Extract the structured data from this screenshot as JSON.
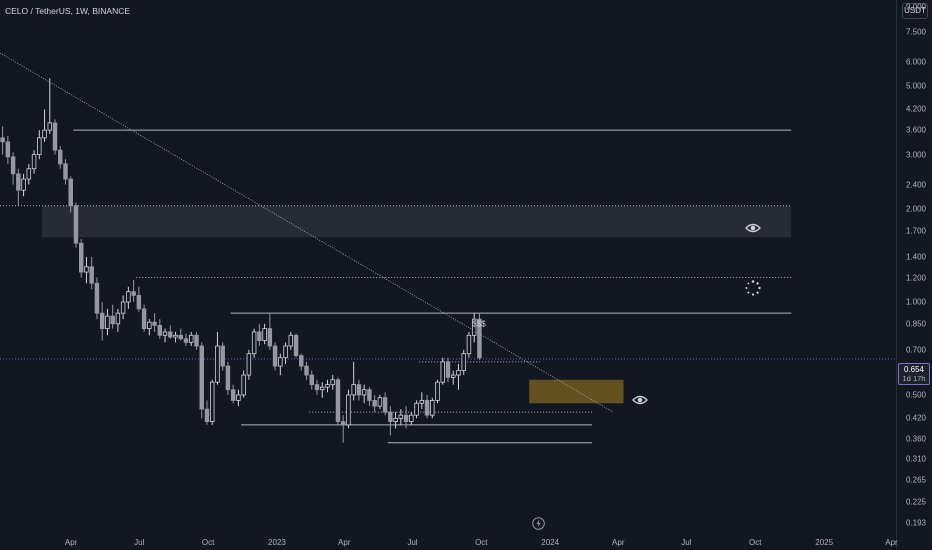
{
  "header": {
    "title": "CELO / TetherUS, 1W, BINANCE",
    "unit_button": "USDT"
  },
  "last_price": {
    "value": "0.654",
    "countdown": "1d 17h"
  },
  "annotations": {
    "sss_label": "$$$"
  },
  "icons": {
    "eye_upper": "eye-icon",
    "loading": "loading-spinner-icon",
    "eye_lower": "eye-icon",
    "bolt": "lightning-icon"
  },
  "colors": {
    "background": "#131722",
    "bull": "#d1d4dc",
    "bear": "#9598a1",
    "trendline": "#b2b5be",
    "orange_box": "#a6811f",
    "gray_zone": "#2a2e39",
    "last_price_line": "#7b6fd6"
  },
  "chart_data": {
    "type": "candlestick",
    "title": "CELO / TetherUS, 1W, BINANCE",
    "y_scale": "log",
    "ylim": [
      0.18,
      9.5
    ],
    "y_ticks": [
      "9.000",
      "7.500",
      "6.000",
      "5.000",
      "4.200",
      "3.600",
      "3.000",
      "2.400",
      "2.000",
      "1.700",
      "1.400",
      "1.200",
      "1.000",
      "0.850",
      "0.700",
      "0.500",
      "0.420",
      "0.360",
      "0.310",
      "0.265",
      "0.225",
      "0.193"
    ],
    "x_ticks": [
      "Apr",
      "Jul",
      "Oct",
      "2023",
      "Apr",
      "Jul",
      "Oct",
      "2024",
      "Apr",
      "Jul",
      "Oct",
      "2025",
      "Apr"
    ],
    "x_tick_dates": [
      "2022-04-01",
      "2022-07-01",
      "2022-10-01",
      "2023-01-01",
      "2023-04-01",
      "2023-07-01",
      "2023-10-01",
      "2024-01-01",
      "2024-04-01",
      "2024-07-01",
      "2024-10-01",
      "2025-01-01",
      "2025-04-01"
    ],
    "xlim": [
      "2021-12-27",
      "2025-04-07"
    ],
    "ohlc_weekly_from": "2021-12-27",
    "ohlc": [
      [
        3.4,
        3.7,
        3.0,
        3.3
      ],
      [
        3.3,
        3.45,
        2.8,
        2.95
      ],
      [
        2.95,
        3.05,
        2.4,
        2.6
      ],
      [
        2.6,
        2.7,
        2.05,
        2.3
      ],
      [
        2.3,
        2.6,
        2.2,
        2.5
      ],
      [
        2.5,
        2.8,
        2.4,
        2.7
      ],
      [
        2.7,
        3.1,
        2.6,
        3.0
      ],
      [
        3.0,
        3.6,
        2.9,
        3.4
      ],
      [
        3.4,
        4.2,
        3.3,
        3.6
      ],
      [
        3.6,
        5.3,
        3.5,
        3.8
      ],
      [
        3.8,
        3.9,
        3.0,
        3.1
      ],
      [
        3.1,
        3.2,
        2.7,
        2.8
      ],
      [
        2.8,
        2.9,
        2.4,
        2.5
      ],
      [
        2.5,
        2.55,
        1.95,
        2.05
      ],
      [
        2.05,
        2.1,
        1.5,
        1.55
      ],
      [
        1.55,
        1.6,
        1.2,
        1.25
      ],
      [
        1.25,
        1.4,
        1.15,
        1.3
      ],
      [
        1.3,
        1.4,
        1.1,
        1.15
      ],
      [
        1.15,
        1.2,
        0.88,
        0.92
      ],
      [
        0.92,
        1.0,
        0.75,
        0.82
      ],
      [
        0.82,
        0.95,
        0.78,
        0.9
      ],
      [
        0.9,
        0.98,
        0.82,
        0.85
      ],
      [
        0.85,
        0.95,
        0.8,
        0.92
      ],
      [
        0.92,
        1.05,
        0.88,
        1.0
      ],
      [
        1.0,
        1.12,
        0.95,
        1.08
      ],
      [
        1.08,
        1.18,
        1.0,
        1.05
      ],
      [
        1.05,
        1.12,
        0.93,
        0.95
      ],
      [
        0.95,
        0.98,
        0.8,
        0.82
      ],
      [
        0.82,
        0.88,
        0.78,
        0.86
      ],
      [
        0.86,
        0.92,
        0.8,
        0.84
      ],
      [
        0.84,
        0.88,
        0.76,
        0.78
      ],
      [
        0.78,
        0.82,
        0.74,
        0.8
      ],
      [
        0.8,
        0.84,
        0.76,
        0.77
      ],
      [
        0.77,
        0.8,
        0.74,
        0.78
      ],
      [
        0.78,
        0.82,
        0.75,
        0.76
      ],
      [
        0.76,
        0.79,
        0.72,
        0.74
      ],
      [
        0.74,
        0.8,
        0.72,
        0.78
      ],
      [
        0.78,
        0.8,
        0.7,
        0.72
      ],
      [
        0.72,
        0.74,
        0.42,
        0.45
      ],
      [
        0.45,
        0.48,
        0.4,
        0.41
      ],
      [
        0.41,
        0.56,
        0.4,
        0.55
      ],
      [
        0.55,
        0.8,
        0.54,
        0.72
      ],
      [
        0.72,
        0.74,
        0.6,
        0.62
      ],
      [
        0.62,
        0.64,
        0.5,
        0.52
      ],
      [
        0.52,
        0.54,
        0.47,
        0.48
      ],
      [
        0.48,
        0.52,
        0.46,
        0.5
      ],
      [
        0.5,
        0.6,
        0.49,
        0.58
      ],
      [
        0.58,
        0.7,
        0.56,
        0.68
      ],
      [
        0.68,
        0.82,
        0.66,
        0.8
      ],
      [
        0.8,
        0.85,
        0.72,
        0.75
      ],
      [
        0.75,
        0.85,
        0.73,
        0.82
      ],
      [
        0.82,
        0.92,
        0.7,
        0.72
      ],
      [
        0.72,
        0.74,
        0.6,
        0.62
      ],
      [
        0.62,
        0.68,
        0.58,
        0.66
      ],
      [
        0.66,
        0.74,
        0.63,
        0.72
      ],
      [
        0.72,
        0.8,
        0.7,
        0.78
      ],
      [
        0.78,
        0.79,
        0.66,
        0.67
      ],
      [
        0.67,
        0.68,
        0.6,
        0.62
      ],
      [
        0.62,
        0.64,
        0.56,
        0.58
      ],
      [
        0.58,
        0.6,
        0.52,
        0.54
      ],
      [
        0.54,
        0.56,
        0.5,
        0.52
      ],
      [
        0.52,
        0.55,
        0.49,
        0.53
      ],
      [
        0.53,
        0.56,
        0.51,
        0.54
      ],
      [
        0.54,
        0.58,
        0.52,
        0.56
      ],
      [
        0.56,
        0.57,
        0.4,
        0.41
      ],
      [
        0.41,
        0.43,
        0.35,
        0.4
      ],
      [
        0.4,
        0.52,
        0.39,
        0.5
      ],
      [
        0.5,
        0.64,
        0.48,
        0.54
      ],
      [
        0.54,
        0.56,
        0.48,
        0.5
      ],
      [
        0.5,
        0.54,
        0.47,
        0.52
      ],
      [
        0.52,
        0.53,
        0.46,
        0.48
      ],
      [
        0.48,
        0.5,
        0.44,
        0.46
      ],
      [
        0.46,
        0.5,
        0.45,
        0.49
      ],
      [
        0.49,
        0.51,
        0.43,
        0.44
      ],
      [
        0.44,
        0.46,
        0.37,
        0.41
      ],
      [
        0.41,
        0.44,
        0.39,
        0.42
      ],
      [
        0.42,
        0.45,
        0.4,
        0.43
      ],
      [
        0.43,
        0.46,
        0.39,
        0.41
      ],
      [
        0.41,
        0.44,
        0.4,
        0.43
      ],
      [
        0.43,
        0.48,
        0.42,
        0.47
      ],
      [
        0.47,
        0.51,
        0.45,
        0.48
      ],
      [
        0.48,
        0.5,
        0.42,
        0.43
      ],
      [
        0.43,
        0.49,
        0.42,
        0.48
      ],
      [
        0.48,
        0.56,
        0.47,
        0.55
      ],
      [
        0.55,
        0.66,
        0.54,
        0.64
      ],
      [
        0.64,
        0.66,
        0.55,
        0.57
      ],
      [
        0.57,
        0.6,
        0.54,
        0.58
      ],
      [
        0.58,
        0.63,
        0.52,
        0.6
      ],
      [
        0.6,
        0.7,
        0.58,
        0.68
      ],
      [
        0.68,
        0.8,
        0.66,
        0.78
      ],
      [
        0.78,
        0.92,
        0.74,
        0.88
      ],
      [
        0.88,
        0.92,
        0.65,
        0.66
      ]
    ],
    "horizontal_levels": [
      {
        "price": 3.6,
        "from": "2022-04-04",
        "to": "2024-11-18",
        "style": "solid"
      },
      {
        "price": 2.05,
        "from": "2021-12-27",
        "to": "2024-11-18",
        "style": "dotted"
      },
      {
        "price": 1.2,
        "from": "2022-06-27",
        "to": "2024-11-18",
        "style": "dotted"
      },
      {
        "price": 0.92,
        "from": "2022-10-31",
        "to": "2024-11-18",
        "style": "solid"
      },
      {
        "price": 0.4,
        "from": "2022-11-14",
        "to": "2024-02-26",
        "style": "solid"
      },
      {
        "price": 0.35,
        "from": "2023-05-29",
        "to": "2024-02-26",
        "style": "solid"
      },
      {
        "price": 0.44,
        "from": "2023-02-13",
        "to": "2024-02-26",
        "style": "dotted"
      },
      {
        "price": 0.64,
        "from": "2023-07-10",
        "to": "2023-12-18",
        "style": "dotted"
      }
    ],
    "zones": [
      {
        "kind": "resistance",
        "from": "2022-02-21",
        "to": "2024-11-18",
        "top": 2.05,
        "bottom": 1.62,
        "color": "gray"
      },
      {
        "kind": "support",
        "from": "2023-12-04",
        "to": "2024-04-08",
        "top": 0.56,
        "bottom": 0.47,
        "color": "orange"
      }
    ],
    "trendline": {
      "start": [
        "2021-12-27",
        6.4
      ],
      "end": [
        "2024-03-25",
        0.44
      ]
    },
    "sss_line_price": 0.92
  }
}
